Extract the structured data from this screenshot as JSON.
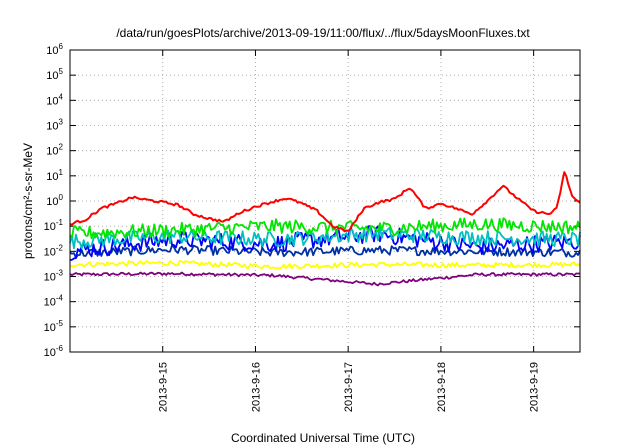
{
  "chart_data": {
    "type": "line",
    "title": "/data/run/goesPlots/archive/2013-09-19/11:00/flux/../flux/5daysMoonFluxes.txt",
    "xlabel": "Coordinated Universal Time (UTC)",
    "ylabel": "protons/cm²-s-sr-MeV",
    "y_scale": "log",
    "ylim": [
      1e-06,
      1000000.0
    ],
    "xlim": [
      "2013-09-14 00:00",
      "2013-09-19 12:00"
    ],
    "x_ticks": [
      "2013-9-15",
      "2013-9-16",
      "2013-9-17",
      "2013-9-18",
      "2013-9-19"
    ],
    "y_ticks": [
      {
        "base": "10",
        "exp": "-6"
      },
      {
        "base": "10",
        "exp": "-5"
      },
      {
        "base": "10",
        "exp": "-4"
      },
      {
        "base": "10",
        "exp": "-3"
      },
      {
        "base": "10",
        "exp": "-2"
      },
      {
        "base": "10",
        "exp": "-1"
      },
      {
        "base": "10",
        "exp": "0"
      },
      {
        "base": "10",
        "exp": "1"
      },
      {
        "base": "10",
        "exp": "2"
      },
      {
        "base": "10",
        "exp": "3"
      },
      {
        "base": "10",
        "exp": "4"
      },
      {
        "base": "10",
        "exp": "5"
      },
      {
        "base": "10",
        "exp": "6"
      }
    ],
    "grid": true,
    "legend": "none",
    "series": [
      {
        "color": "#ff0000",
        "x": [
          "2013-09-14 00:00",
          "2013-09-14 04:00",
          "2013-09-14 08:00",
          "2013-09-14 12:00",
          "2013-09-14 16:00",
          "2013-09-14 20:00",
          "2013-09-15 00:00",
          "2013-09-15 04:00",
          "2013-09-15 08:00",
          "2013-09-15 12:00",
          "2013-09-15 16:00",
          "2013-09-15 20:00",
          "2013-09-16 00:00",
          "2013-09-16 04:00",
          "2013-09-16 08:00",
          "2013-09-16 12:00",
          "2013-09-16 16:00",
          "2013-09-16 20:00",
          "2013-09-17 00:00",
          "2013-09-17 04:00",
          "2013-09-17 08:00",
          "2013-09-17 12:00",
          "2013-09-17 16:00",
          "2013-09-17 20:00",
          "2013-09-18 00:00",
          "2013-09-18 04:00",
          "2013-09-18 08:00",
          "2013-09-18 12:00",
          "2013-09-18 16:00",
          "2013-09-18 20:00",
          "2013-09-19 00:00",
          "2013-09-19 04:00",
          "2013-09-19 06:00",
          "2013-09-19 08:00",
          "2013-09-19 10:00",
          "2013-09-19 12:00"
        ],
        "y": [
          0.12,
          0.18,
          0.5,
          0.8,
          1.4,
          1.1,
          0.9,
          0.7,
          0.3,
          0.2,
          0.15,
          0.35,
          0.6,
          0.9,
          1.3,
          0.8,
          0.4,
          0.1,
          0.06,
          0.5,
          0.9,
          1.2,
          3.5,
          0.5,
          0.8,
          0.5,
          0.3,
          1.0,
          4.0,
          1.2,
          0.4,
          0.3,
          0.5,
          15,
          1.5,
          0.8
        ]
      },
      {
        "color": "#00e600",
        "y": [
          0.05,
          0.07,
          0.1,
          0.08,
          0.12,
          0.09
        ]
      },
      {
        "color": "#00c0c0",
        "y": [
          0.025,
          0.04,
          0.03,
          0.05,
          0.035,
          0.03
        ]
      },
      {
        "color": "#0000ff",
        "y": [
          0.01,
          0.03,
          0.02,
          0.05,
          0.015,
          0.025
        ]
      },
      {
        "color": "#0030a0",
        "y": [
          0.008,
          0.012,
          0.009,
          0.011,
          0.01,
          0.009
        ]
      },
      {
        "color": "#ffff00",
        "y": [
          0.003,
          0.0035,
          0.0025,
          0.003,
          0.0028,
          0.003
        ]
      },
      {
        "color": "#800080",
        "y": [
          0.0012,
          0.0013,
          0.0011,
          0.0005,
          0.0012,
          0.0012
        ]
      }
    ]
  }
}
